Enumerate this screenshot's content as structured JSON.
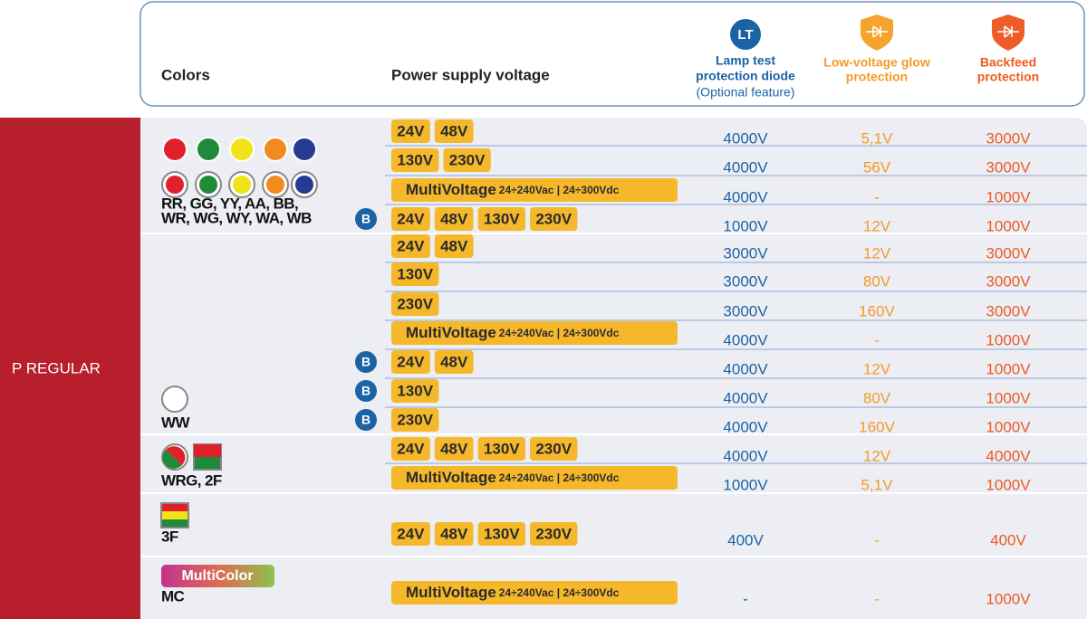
{
  "header": {
    "colors": "Colors",
    "voltage": "Power supply voltage",
    "lt": {
      "icon": "LT",
      "title": [
        "Lamp test",
        "protection diode"
      ],
      "note": "(Optional feature)"
    },
    "glow": {
      "title": [
        "Low-voltage glow",
        "protection"
      ]
    },
    "backfeed": {
      "title": [
        "Backfeed",
        "protection"
      ]
    }
  },
  "family": "P REGULAR",
  "groups": [
    {
      "label": [
        "RR, GG, YY, AA, BB,",
        "WR, WG, WY, WA, WB"
      ],
      "rows": [
        {
          "chips": [
            "24V",
            "48V"
          ],
          "lt": "4000V",
          "glow": "5,1V",
          "backfeed": "3000V"
        },
        {
          "chips": [
            "130V",
            "230V"
          ],
          "lt": "4000V",
          "glow": "56V",
          "backfeed": "3000V"
        },
        {
          "multivoltage": {
            "label": "MultiVoltage",
            "detail": "24÷240Vac | 24÷300Vdc"
          },
          "lt": "4000V",
          "glow": "-",
          "backfeed": "1000V"
        },
        {
          "badge": "B",
          "chips": [
            "24V",
            "48V",
            "130V",
            "230V"
          ],
          "lt": "1000V",
          "glow": "12V",
          "backfeed": "1000V"
        }
      ]
    },
    {
      "label": [
        "WW"
      ],
      "rows": [
        {
          "chips": [
            "24V",
            "48V"
          ],
          "lt": "3000V",
          "glow": "12V",
          "backfeed": "3000V"
        },
        {
          "chips": [
            "130V"
          ],
          "lt": "3000V",
          "glow": "80V",
          "backfeed": "3000V"
        },
        {
          "chips": [
            "230V"
          ],
          "lt": "3000V",
          "glow": "160V",
          "backfeed": "3000V"
        },
        {
          "multivoltage": {
            "label": "MultiVoltage",
            "detail": "24÷240Vac | 24÷300Vdc"
          },
          "lt": "4000V",
          "glow": "-",
          "backfeed": "1000V"
        },
        {
          "badge": "B",
          "chips": [
            "24V",
            "48V"
          ],
          "lt": "4000V",
          "glow": "12V",
          "backfeed": "1000V"
        },
        {
          "badge": "B",
          "chips": [
            "130V"
          ],
          "lt": "4000V",
          "glow": "80V",
          "backfeed": "1000V"
        },
        {
          "badge": "B",
          "chips": [
            "230V"
          ],
          "lt": "4000V",
          "glow": "160V",
          "backfeed": "1000V"
        }
      ]
    },
    {
      "label": [
        "WRG, 2F"
      ],
      "rows": [
        {
          "chips": [
            "24V",
            "48V",
            "130V",
            "230V"
          ],
          "lt": "4000V",
          "glow": "12V",
          "backfeed": "4000V"
        },
        {
          "multivoltage": {
            "label": "MultiVoltage",
            "detail": "24÷240Vac | 24÷300Vdc"
          },
          "lt": "1000V",
          "glow": "5,1V",
          "backfeed": "1000V"
        }
      ]
    },
    {
      "label": [
        "3F"
      ],
      "rows": [
        {
          "chips": [
            "24V",
            "48V",
            "130V",
            "230V"
          ],
          "lt": "400V",
          "glow": "-",
          "backfeed": "400V"
        }
      ]
    },
    {
      "badge_text": "MultiColor",
      "label": [
        "MC"
      ],
      "rows": [
        {
          "multivoltage": {
            "label": "MultiVoltage",
            "detail": "24÷240Vac | 24÷300Vdc"
          },
          "lt": "-",
          "glow": "-",
          "backfeed": "1000V"
        }
      ]
    }
  ]
}
